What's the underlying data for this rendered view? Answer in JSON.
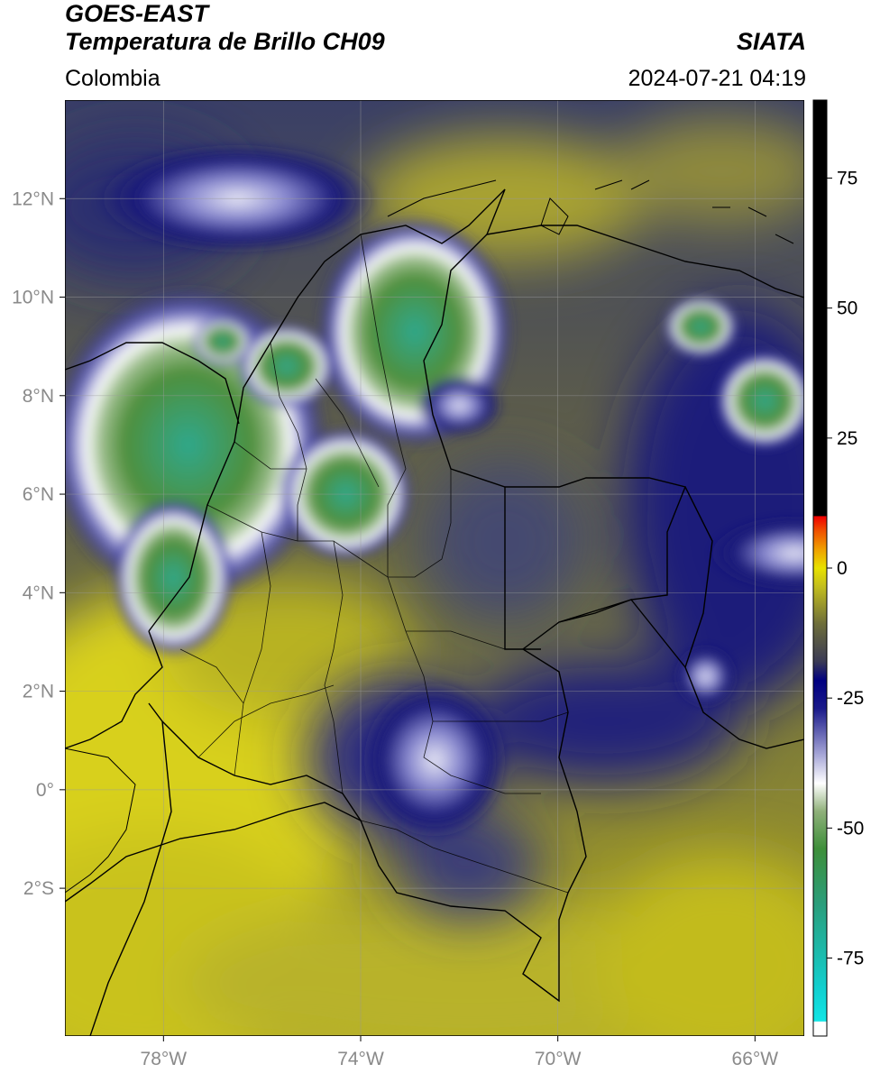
{
  "header": {
    "satellite": "GOES-EAST",
    "product": "Temperatura de Brillo CH09",
    "organization": "SIATA",
    "region": "Colombia",
    "datetime": "2024-07-21 04:19"
  },
  "map": {
    "projection": "lat-lon",
    "lon_range": [
      -80,
      -65
    ],
    "lat_range": [
      -5,
      14
    ],
    "lon_ticks": [
      {
        "value": -78,
        "label": "78°W"
      },
      {
        "value": -74,
        "label": "74°W"
      },
      {
        "value": -70,
        "label": "70°W"
      },
      {
        "value": -66,
        "label": "66°W"
      }
    ],
    "lat_ticks": [
      {
        "value": 12,
        "label": "12°N"
      },
      {
        "value": 10,
        "label": "10°N"
      },
      {
        "value": 8,
        "label": "8°N"
      },
      {
        "value": 6,
        "label": "6°N"
      },
      {
        "value": 4,
        "label": "4°N"
      },
      {
        "value": 2,
        "label": "2°N"
      },
      {
        "value": 0,
        "label": "0°"
      },
      {
        "value": -2,
        "label": "2°S"
      }
    ],
    "grid": true,
    "colors": {
      "warm": "#c9c21a",
      "mid": "#6b6b3f",
      "cold_blue": "#1a1a7a",
      "white": "#ffffff",
      "green": "#4f8f3c",
      "teal": "#2fa88c"
    },
    "clouds": [
      {
        "lon": -77.5,
        "lat": 7.0,
        "rx": 2.3,
        "ry": 2.6,
        "level": "very-cold"
      },
      {
        "lon": -77.8,
        "lat": 4.3,
        "rx": 1.0,
        "ry": 1.3,
        "level": "cold"
      },
      {
        "lon": -72.9,
        "lat": 9.3,
        "rx": 1.6,
        "ry": 1.9,
        "level": "cold"
      },
      {
        "lon": -72.0,
        "lat": 7.8,
        "rx": 0.7,
        "ry": 0.5,
        "level": "mid"
      },
      {
        "lon": -74.3,
        "lat": 6.0,
        "rx": 1.1,
        "ry": 1.1,
        "level": "cold"
      },
      {
        "lon": -75.5,
        "lat": 8.6,
        "rx": 0.8,
        "ry": 0.7,
        "level": "cold"
      },
      {
        "lon": -76.8,
        "lat": 9.1,
        "rx": 0.5,
        "ry": 0.4,
        "level": "cold"
      },
      {
        "lon": -67.1,
        "lat": 9.4,
        "rx": 0.6,
        "ry": 0.5,
        "level": "cold"
      },
      {
        "lon": -65.8,
        "lat": 7.9,
        "rx": 0.8,
        "ry": 0.8,
        "level": "cold"
      },
      {
        "lon": -65.2,
        "lat": 4.8,
        "rx": 1.4,
        "ry": 0.6,
        "level": "mid"
      },
      {
        "lon": -67.0,
        "lat": 2.3,
        "rx": 0.5,
        "ry": 0.5,
        "level": "mid"
      },
      {
        "lon": -72.5,
        "lat": 0.6,
        "rx": 1.2,
        "ry": 1.3,
        "level": "mid"
      },
      {
        "lon": -76.5,
        "lat": 12.0,
        "rx": 2.3,
        "ry": 0.9,
        "level": "mid"
      }
    ],
    "label": ""
  },
  "colorbar": {
    "ticks": [
      {
        "value": 75,
        "label": "75"
      },
      {
        "value": 50,
        "label": "50"
      },
      {
        "value": 25,
        "label": "25"
      },
      {
        "value": 0,
        "label": "0"
      },
      {
        "value": -25,
        "label": "-25"
      },
      {
        "value": -50,
        "label": "-50"
      },
      {
        "value": -75,
        "label": "-75"
      }
    ],
    "range": [
      -90,
      90
    ]
  }
}
